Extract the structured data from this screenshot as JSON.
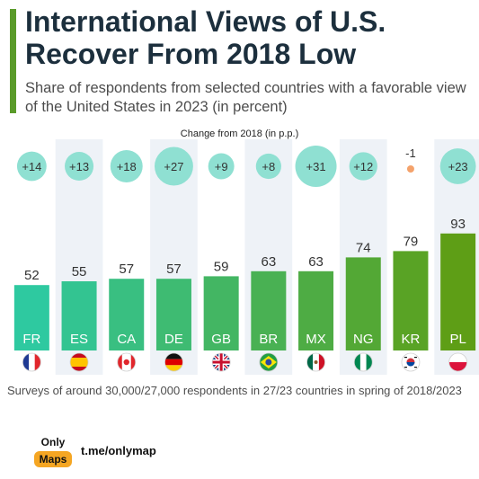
{
  "title": "International Views of U.S. Recover From 2018 Low",
  "subtitle": "Share of respondents from selected countries with a favorable view of the United States in 2023 (in percent)",
  "change_label": "Change from 2018 (in p.p.)",
  "note": "Surveys of around 30,000/27,000 respondents in 27/23 countries in spring of 2018/2023",
  "logo": {
    "line1": "Only",
    "line2": "Maps"
  },
  "handle": "t.me/onlymap",
  "colors": {
    "bar_low": "#2ec9a0",
    "bar_high": "#5e9e16",
    "bubble": "#8fe0d2",
    "bubble_negative": "#f4a26b",
    "column_shade": "#eef2f7",
    "accent": "#5a9b2a"
  },
  "chart_data": {
    "type": "bar",
    "categories": [
      "FR",
      "ES",
      "CA",
      "DE",
      "GB",
      "BR",
      "MX",
      "NG",
      "KR",
      "PL"
    ],
    "values": [
      52,
      55,
      57,
      57,
      59,
      63,
      63,
      74,
      79,
      93
    ],
    "change_values": [
      14,
      13,
      18,
      27,
      9,
      8,
      31,
      12,
      -1,
      23
    ],
    "change_labels": [
      "+14",
      "+13",
      "+18",
      "+27",
      "+9",
      "+8",
      "+31",
      "+12",
      "-1",
      "+23"
    ],
    "flags": [
      "flag-fr-icon",
      "flag-es-icon",
      "flag-ca-icon",
      "flag-de-icon",
      "flag-gb-icon",
      "flag-br-icon",
      "flag-mx-icon",
      "flag-ng-icon",
      "flag-kr-icon",
      "flag-pl-icon"
    ],
    "ylim": [
      0,
      100
    ],
    "grid": false
  }
}
